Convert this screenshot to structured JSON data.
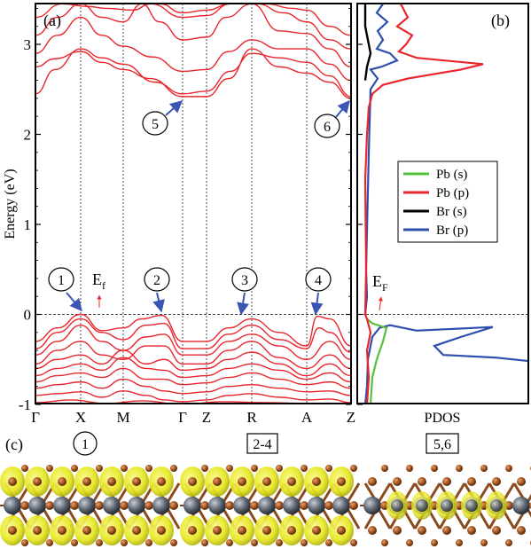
{
  "figure": {
    "panel_a_label": "(a)",
    "panel_b_label": "(b)",
    "panel_c_label": "(c)",
    "y_axis_title": "Energy (eV)",
    "pdos_label": "PDOS",
    "ef_label_a": "E",
    "ef_sub_a": "f",
    "ef_label_b": "E",
    "ef_sub_b": "F",
    "y_ticks": [
      "-1",
      "0",
      "1",
      "2",
      "3"
    ],
    "k_points": [
      "Γ",
      "X",
      "M",
      "Γ",
      "Z",
      "R",
      "A",
      "Z"
    ],
    "markers": [
      "1",
      "2",
      "3",
      "4",
      "5",
      "6"
    ],
    "structure_captions": {
      "first": "1",
      "second": "2-4",
      "third": "5,6"
    },
    "colors": {
      "band": "#e8262b",
      "arrow": "#3b55b4",
      "pb_s": "#55c13b",
      "pb_p": "#e8262b",
      "br_s": "#000000",
      "br_p": "#2f4fae",
      "isosurface": "#e6e61e",
      "pb_atom": "#5b6470",
      "br_atom": "#a0521e"
    }
  },
  "legend": [
    {
      "label": "Pb (s)",
      "color": "#55c13b"
    },
    {
      "label": "Pb (p)",
      "color": "#e8262b"
    },
    {
      "label": "Br (s)",
      "color": "#000000"
    },
    {
      "label": "Br (p)",
      "color": "#2f4fae"
    }
  ],
  "chart_data": [
    {
      "type": "line",
      "ylabel": "Energy (eV)",
      "ylim": [
        -1,
        3.45
      ],
      "x_categories": [
        "Γ",
        "X",
        "M",
        "Γ",
        "Z",
        "R",
        "A",
        "Z"
      ],
      "fermi_level": 0,
      "band_extrema": [
        {
          "marker": "1",
          "k": "X",
          "energy": 0.0
        },
        {
          "marker": "2",
          "k": "M-Γ",
          "energy": -0.01
        },
        {
          "marker": "3",
          "k": "R",
          "energy": -0.05
        },
        {
          "marker": "4",
          "k": "A-Z",
          "energy": -0.02
        },
        {
          "marker": "5",
          "k": "Γ",
          "energy": 2.42
        },
        {
          "marker": "6",
          "k": "Z",
          "energy": 2.41
        }
      ]
    },
    {
      "type": "line",
      "xlabel": "PDOS",
      "ylim": [
        -1,
        3.45
      ],
      "series": [
        {
          "name": "Pb (s)"
        },
        {
          "name": "Pb (p)"
        },
        {
          "name": "Br (s)"
        },
        {
          "name": "Br (p)"
        }
      ]
    }
  ]
}
